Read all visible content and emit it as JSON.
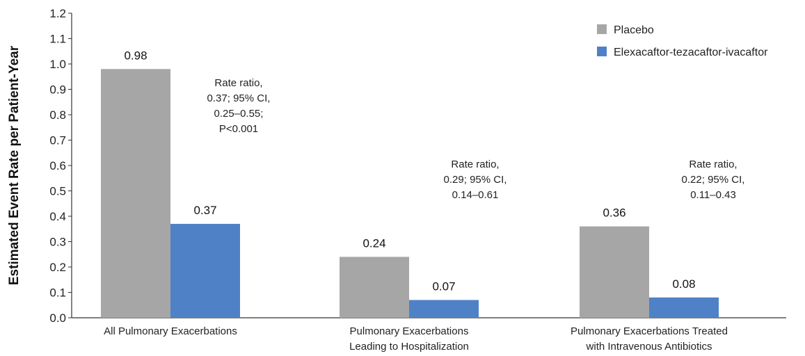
{
  "chart_data": {
    "type": "bar",
    "title": "",
    "xlabel": "",
    "ylabel": "Estimated Event Rate per Patient-Year",
    "ylim": [
      0,
      1.2
    ],
    "yticks": [
      "0.0",
      "0.1",
      "0.2",
      "0.3",
      "0.4",
      "0.5",
      "0.6",
      "0.7",
      "0.8",
      "0.9",
      "1.0",
      "1.1",
      "1.2"
    ],
    "grid": false,
    "legend_position": "top-right",
    "categories": [
      [
        "All Pulmonary Exacerbations"
      ],
      [
        "Pulmonary Exacerbations",
        "Leading to Hospitalization"
      ],
      [
        "Pulmonary Exacerbations Treated",
        "with Intravenous Antibiotics"
      ]
    ],
    "series": [
      {
        "name": "Placebo",
        "color": "#a6a6a6",
        "values": [
          0.98,
          0.24,
          0.36
        ],
        "labels": [
          "0.98",
          "0.24",
          "0.36"
        ]
      },
      {
        "name": "Elexacaftor-tezacaftor-ivacaftor",
        "color": "#4f81c7",
        "values": [
          0.37,
          0.07,
          0.08
        ],
        "labels": [
          "0.37",
          "0.07",
          "0.08"
        ]
      }
    ],
    "annotations": [
      [
        "Rate ratio,",
        "0.37; 95% CI,",
        "0.25–0.55;",
        "P<0.001"
      ],
      [
        "Rate ratio,",
        "0.29; 95% CI,",
        "0.14–0.61"
      ],
      [
        "Rate ratio,",
        "0.22; 95% CI,",
        "0.11–0.43"
      ]
    ]
  }
}
